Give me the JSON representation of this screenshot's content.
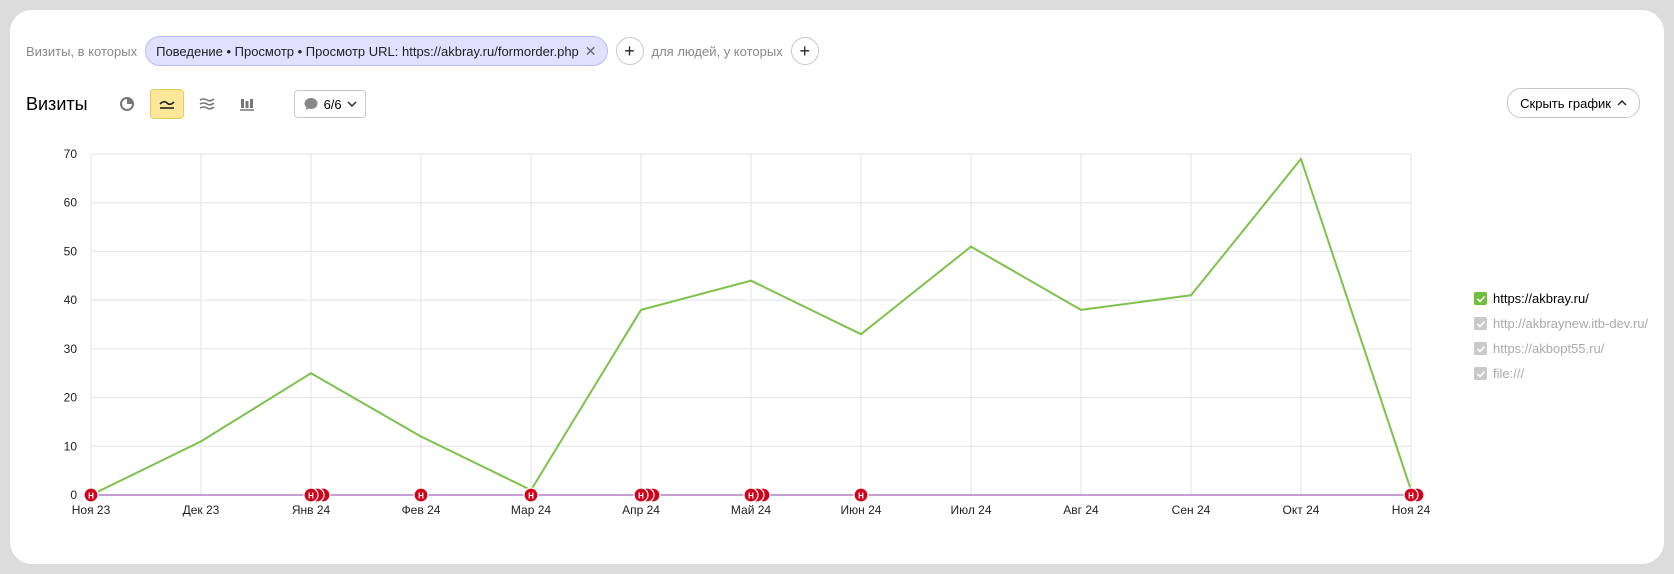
{
  "filter": {
    "prefix": "Визиты, в которых",
    "chip_label": "Поведение • Просмотр • Просмотр URL: https://akbray.ru/formorder.php",
    "people_label": "для людей, у которых"
  },
  "toolbar": {
    "title": "Визиты",
    "comments_count": "6/6",
    "hide_chart_label": "Скрыть график"
  },
  "legend": [
    {
      "label": "https://akbray.ru/",
      "checked": true,
      "active": true
    },
    {
      "label": "http://akbraynew.itb-dev.ru/",
      "checked": true,
      "active": false
    },
    {
      "label": "https://akbopt55.ru/",
      "checked": true,
      "active": false
    },
    {
      "label": "file:///",
      "checked": true,
      "active": false
    }
  ],
  "colors": {
    "series": "#7dc24b",
    "baseline": "#8b3fa3",
    "marker": "#d0021b",
    "legend_on": "#6fbf3f",
    "legend_off": "#c9c9c9"
  },
  "chart_data": {
    "type": "line",
    "categories": [
      "Ноя 23",
      "Дек 23",
      "Янв 24",
      "Фев 24",
      "Мар 24",
      "Апр 24",
      "Май 24",
      "Июн 24",
      "Июл 24",
      "Авг 24",
      "Сен 24",
      "Окт 24",
      "Ноя 24"
    ],
    "series": [
      {
        "name": "https://akbray.ru/",
        "values": [
          0,
          11,
          25,
          12,
          1,
          38,
          44,
          33,
          51,
          38,
          41,
          69,
          1
        ]
      }
    ],
    "ylim": [
      0,
      70
    ],
    "yticks": [
      0,
      10,
      20,
      30,
      40,
      50,
      60,
      70
    ],
    "grid": true,
    "legend_position": "right",
    "annotation_marker": "Н",
    "annotations": [
      {
        "category_index": 0,
        "count": 1
      },
      {
        "category_index": 2,
        "count": 3
      },
      {
        "category_index": 3,
        "count": 1
      },
      {
        "category_index": 4,
        "count": 1
      },
      {
        "category_index": 5,
        "count": 3
      },
      {
        "category_index": 6,
        "count": 3
      },
      {
        "category_index": 7,
        "count": 1
      },
      {
        "category_index": 12,
        "count": 2
      }
    ]
  }
}
